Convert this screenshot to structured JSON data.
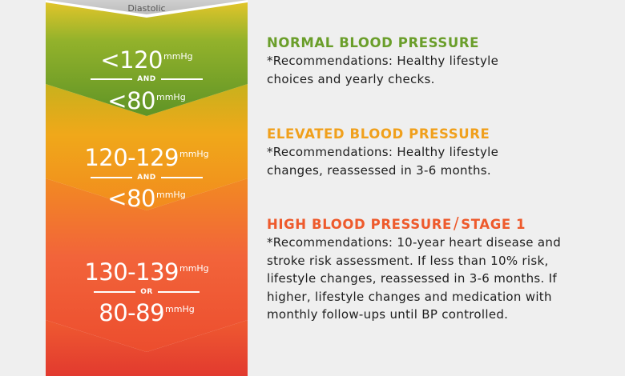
{
  "colors": {
    "normal": "#6a9e2a",
    "elevated": "#f0a01c",
    "stage1": "#ee5a2c",
    "stage2": "#df2a32"
  },
  "column": {
    "diastolic_label": "Diastolic"
  },
  "tiers": [
    {
      "systolic": "<120",
      "systolic_unit": "mmHg",
      "connector": "AND",
      "diastolic": "<80",
      "diastolic_unit": "mmHg",
      "title": "NORMAL BLOOD PRESSURE",
      "recommendation": "*Recommendations: Healthy lifestyle choices and yearly checks."
    },
    {
      "systolic": "120-129",
      "systolic_unit": "mmHg",
      "connector": "AND",
      "diastolic": "<80",
      "diastolic_unit": "mmHg",
      "title": "ELEVATED BLOOD PRESSURE",
      "recommendation": "*Recommendations: Healthy lifestyle changes, reassessed in 3-6 months."
    },
    {
      "systolic": "130-139",
      "systolic_unit": "mmHg",
      "connector": "OR",
      "diastolic": "80-89",
      "diastolic_unit": "mmHg",
      "title_main": "HIGH BLOOD PRESSURE",
      "title_sep": "/",
      "title_stage": "STAGE 1",
      "recommendation": "*Recommendations: 10-year heart disease and stroke risk assessment. If less than 10% risk, lifestyle changes, reassessed in 3-6 months. If higher, lifestyle changes and medication with monthly follow-ups until BP controlled."
    }
  ]
}
